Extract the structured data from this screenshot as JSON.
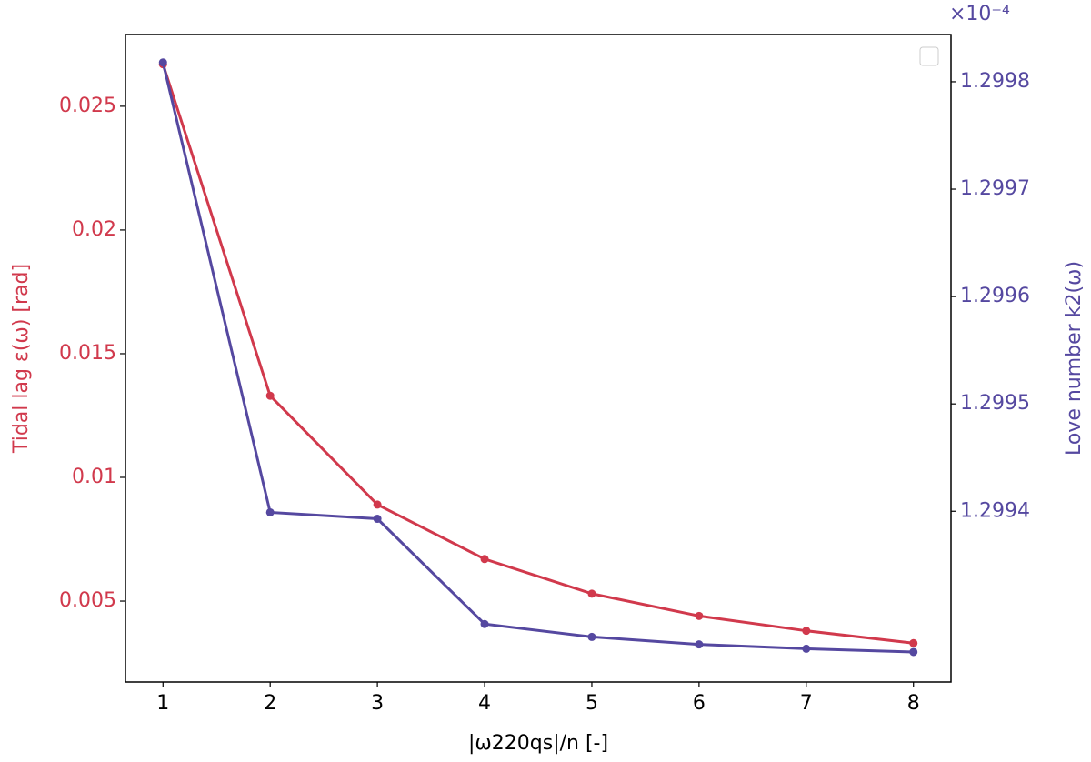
{
  "chart_data": {
    "type": "line",
    "x_label": "|ω220qs|/n [-]",
    "y_label": "Tidal lag ε(ω) [rad]",
    "y2_label": "Love number k2(ω)",
    "y2_offset_label": "×10⁻⁴",
    "x": [
      1,
      2,
      3,
      4,
      5,
      6,
      7,
      8
    ],
    "series": [
      {
        "name": "Tidal lag",
        "color": "#d1394c",
        "values": [
          0.0267,
          0.0133,
          0.0089,
          0.0067,
          0.0053,
          0.0044,
          0.0038,
          0.0033
        ]
      },
      {
        "name": "Love number",
        "color": "#5548a0",
        "axis": "y2",
        "values": [
          1.299818,
          1.299399,
          1.299393,
          1.299295,
          1.299283,
          1.299276,
          1.299272,
          1.299269
        ]
      }
    ],
    "xlim": [
      0.65,
      8.35
    ],
    "xticks": [
      1,
      2,
      3,
      4,
      5,
      6,
      7,
      8
    ],
    "ylim": [
      0.00173,
      0.0279
    ],
    "yticks": [
      0.005,
      0.01,
      0.015,
      0.02,
      0.025
    ],
    "y2lim": [
      1.299241,
      1.299844
    ],
    "y2ticks": [
      1.2994,
      1.2995,
      1.2996,
      1.2997,
      1.2998
    ],
    "grid": false
  }
}
